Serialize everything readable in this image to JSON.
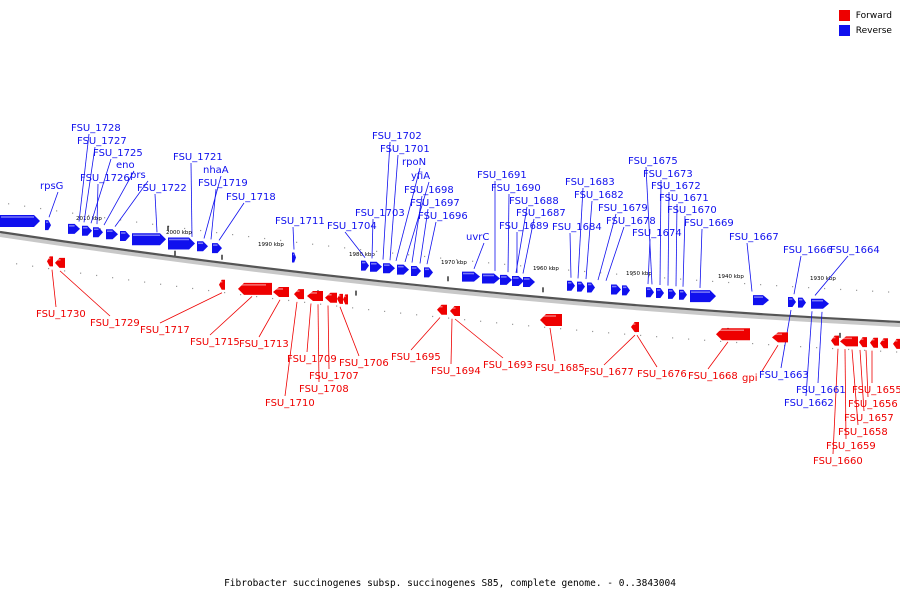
{
  "legend": [
    {
      "label": "Forward",
      "color": "#ee0000"
    },
    {
      "label": "Reverse",
      "color": "#1010ee"
    }
  ],
  "caption": "Fibrobacter succinogenes subsp. succinogenes S85, complete genome. - 0..3843004",
  "ticks": [
    "2010 kbp",
    "2000 kbp",
    "1990 kbp",
    "1980 kbp",
    "1970 kbp",
    "1960 kbp",
    "1950 kbp",
    "1940 kbp",
    "1930 kbp"
  ],
  "reverse_genes": [
    "rpsG",
    "FSU_1728",
    "FSU_1727",
    "FSU_1725",
    "eno",
    "FSU_1726",
    "prs",
    "FSU_1722",
    "FSU_1721",
    "nhaA",
    "FSU_1719",
    "FSU_1718",
    "FSU_1711",
    "FSU_1704",
    "FSU_1703",
    "FSU_1702",
    "FSU_1701",
    "rpoN",
    "yfiA",
    "FSU_1698",
    "FSU_1697",
    "FSU_1696",
    "uvrC",
    "FSU_1691",
    "FSU_1690",
    "FSU_1688",
    "FSU_1687",
    "FSU_1689",
    "FSU_1684",
    "FSU_1683",
    "FSU_1682",
    "FSU_1679",
    "FSU_1678",
    "FSU_1675",
    "FSU_1674",
    "FSU_1673",
    "FSU_1672",
    "FSU_1671",
    "FSU_1670",
    "FSU_1669",
    "FSU_1667",
    "FSU_1666",
    "FSU_1664",
    "FSU_1663",
    "FSU_1662",
    "FSU_1661"
  ],
  "forward_genes": [
    "FSU_1730",
    "FSU_1729",
    "FSU_1717",
    "FSU_1715",
    "FSU_1713",
    "FSU_1710",
    "FSU_1709",
    "FSU_1708",
    "FSU_1707",
    "FSU_1706",
    "FSU_1695",
    "FSU_1694",
    "FSU_1693",
    "FSU_1685",
    "FSU_1677",
    "FSU_1676",
    "FSU_1668",
    "gpi",
    "FSU_1660",
    "FSU_1659",
    "FSU_1658",
    "FSU_1657",
    "FSU_1656",
    "FSU_1655"
  ]
}
